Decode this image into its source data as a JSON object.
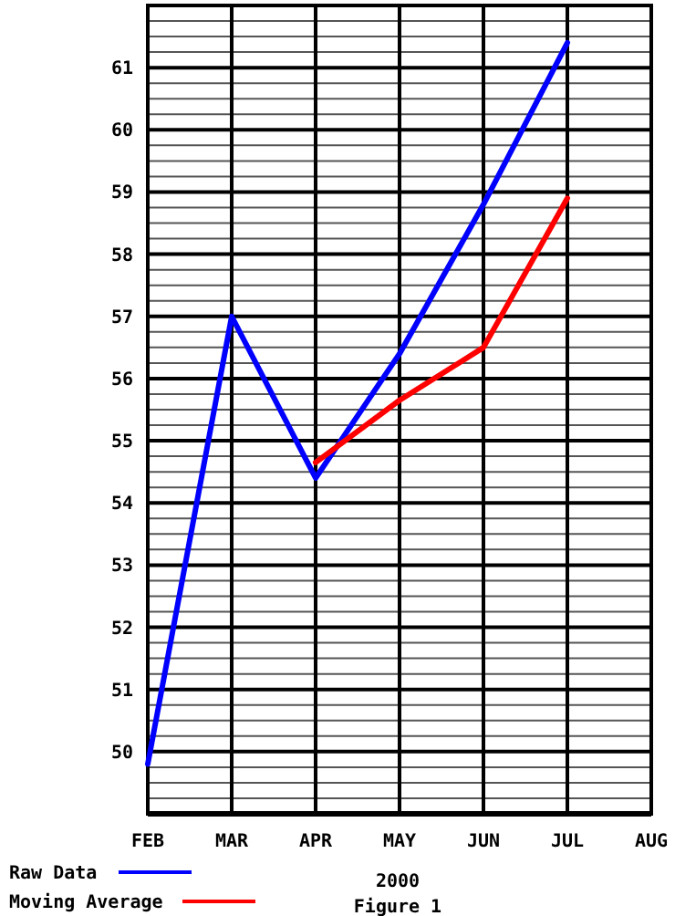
{
  "chart_data": {
    "type": "line",
    "xlabel": "2000",
    "annotations": [
      "Figure 1"
    ],
    "categories": [
      "FEB",
      "MAR",
      "APR",
      "MAY",
      "JUN",
      "JUL",
      "AUG"
    ],
    "series": [
      {
        "name": "Raw Data",
        "color": "#0000ff",
        "values": [
          49.8,
          57.0,
          54.4,
          56.4,
          58.8,
          61.4,
          null
        ]
      },
      {
        "name": "Moving Average",
        "color": "#ff0000",
        "values": [
          null,
          null,
          54.65,
          55.65,
          56.5,
          58.9,
          null
        ]
      }
    ],
    "ylim": [
      49,
      62
    ],
    "yticks": [
      {
        "value": 49,
        "label": null
      },
      {
        "value": 49.25,
        "label": null
      },
      {
        "value": 49.5,
        "label": null
      },
      {
        "value": 49.75,
        "label": null
      },
      50,
      {
        "value": 50.25,
        "label": null
      },
      {
        "value": 50.5,
        "label": null
      },
      {
        "value": 50.75,
        "label": null
      },
      51,
      {
        "value": 51.25,
        "label": null
      },
      {
        "value": 51.5,
        "label": null
      },
      {
        "value": 51.75,
        "label": null
      },
      52,
      {
        "value": 52.25,
        "label": null
      },
      {
        "value": 52.5,
        "label": null
      },
      {
        "value": 52.75,
        "label": null
      },
      53,
      {
        "value": 53.25,
        "label": null
      },
      {
        "value": 53.5,
        "label": null
      },
      {
        "value": 53.75,
        "label": null
      },
      54,
      {
        "value": 54.25,
        "label": null
      },
      {
        "value": 54.5,
        "label": null
      },
      {
        "value": 54.75,
        "label": null
      },
      55,
      {
        "value": 55.25,
        "label": null
      },
      {
        "value": 55.5,
        "label": null
      },
      {
        "value": 55.75,
        "label": null
      },
      56,
      {
        "value": 56.25,
        "label": null
      },
      {
        "value": 56.5,
        "label": null
      },
      {
        "value": 56.75,
        "label": null
      },
      57,
      {
        "value": 57.25,
        "label": null
      },
      {
        "value": 57.5,
        "label": null
      },
      {
        "value": 57.75,
        "label": null
      },
      58,
      {
        "value": 58.25,
        "label": null
      },
      {
        "value": 58.5,
        "label": null
      },
      {
        "value": 58.75,
        "label": null
      },
      59,
      {
        "value": 59.25,
        "label": null
      },
      {
        "value": 59.5,
        "label": null
      },
      {
        "value": 59.75,
        "label": null
      },
      60,
      {
        "value": 60.25,
        "label": null
      },
      {
        "value": 60.5,
        "label": null
      },
      {
        "value": 60.75,
        "label": null
      },
      61,
      {
        "value": 61.25,
        "label": null
      },
      {
        "value": 61.5,
        "label": null
      },
      {
        "value": 61.75,
        "label": null
      },
      {
        "value": 62,
        "label": null
      }
    ],
    "grid": true,
    "legend": "bottom left",
    "marker": "none",
    "line_style": "solid"
  }
}
